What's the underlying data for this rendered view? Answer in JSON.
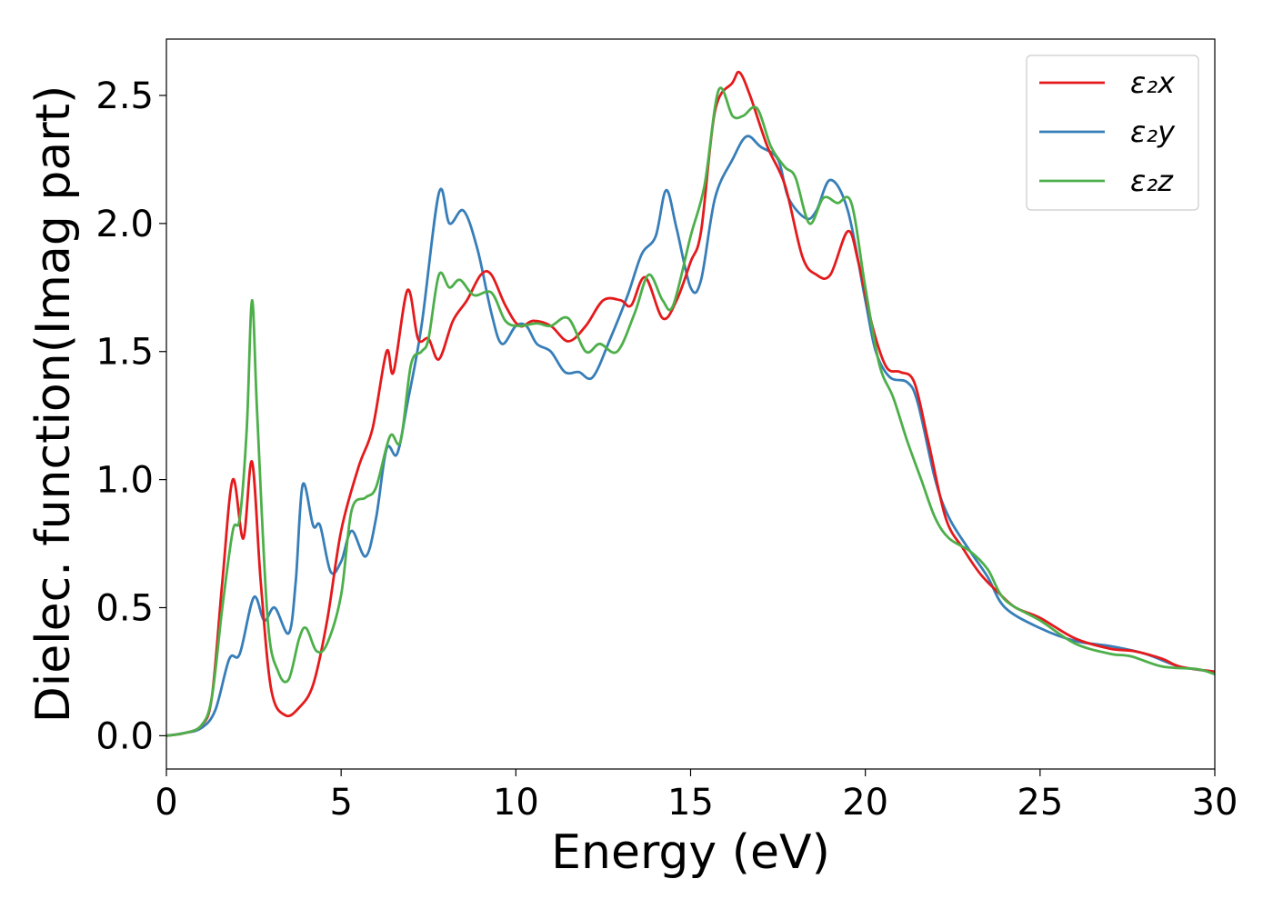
{
  "chart_data": {
    "type": "line",
    "title": "",
    "xlabel": "Energy (eV)",
    "ylabel": "Dielec. function(Imag part)",
    "xlim": [
      0,
      30
    ],
    "ylim": [
      -0.13,
      2.72
    ],
    "xticks": [
      0,
      5,
      10,
      15,
      20,
      25,
      30
    ],
    "xtick_labels": [
      "0",
      "5",
      "10",
      "15",
      "20",
      "25",
      "30"
    ],
    "yticks": [
      0.0,
      0.5,
      1.0,
      1.5,
      2.0,
      2.5
    ],
    "ytick_labels": [
      "0.0",
      "0.5",
      "1.0",
      "1.5",
      "2.0",
      "2.5"
    ],
    "grid": false,
    "legend_position": "top-right",
    "series": [
      {
        "name": "ε₂x",
        "color": "#e41a1c",
        "points": [
          [
            0,
            0
          ],
          [
            0.5,
            0.01
          ],
          [
            1,
            0.04
          ],
          [
            1.3,
            0.15
          ],
          [
            1.6,
            0.6
          ],
          [
            1.9,
            1.0
          ],
          [
            2.2,
            0.77
          ],
          [
            2.45,
            1.07
          ],
          [
            2.7,
            0.6
          ],
          [
            3.0,
            0.18
          ],
          [
            3.4,
            0.08
          ],
          [
            3.8,
            0.11
          ],
          [
            4.2,
            0.2
          ],
          [
            4.6,
            0.45
          ],
          [
            5.0,
            0.8
          ],
          [
            5.5,
            1.05
          ],
          [
            5.9,
            1.2
          ],
          [
            6.3,
            1.5
          ],
          [
            6.5,
            1.42
          ],
          [
            6.9,
            1.74
          ],
          [
            7.2,
            1.55
          ],
          [
            7.5,
            1.55
          ],
          [
            7.8,
            1.47
          ],
          [
            8.2,
            1.62
          ],
          [
            8.6,
            1.7
          ],
          [
            9.0,
            1.8
          ],
          [
            9.3,
            1.8
          ],
          [
            9.7,
            1.68
          ],
          [
            10.1,
            1.6
          ],
          [
            10.5,
            1.62
          ],
          [
            11.0,
            1.6
          ],
          [
            11.5,
            1.54
          ],
          [
            12.0,
            1.6
          ],
          [
            12.5,
            1.7
          ],
          [
            13.0,
            1.7
          ],
          [
            13.3,
            1.68
          ],
          [
            13.7,
            1.79
          ],
          [
            14.2,
            1.63
          ],
          [
            14.6,
            1.7
          ],
          [
            15.0,
            1.85
          ],
          [
            15.3,
            1.97
          ],
          [
            15.7,
            2.44
          ],
          [
            16.2,
            2.55
          ],
          [
            16.4,
            2.59
          ],
          [
            16.7,
            2.5
          ],
          [
            17.2,
            2.3
          ],
          [
            17.7,
            2.15
          ],
          [
            18.2,
            1.87
          ],
          [
            18.6,
            1.8
          ],
          [
            19.0,
            1.8
          ],
          [
            19.5,
            1.97
          ],
          [
            19.8,
            1.85
          ],
          [
            20.2,
            1.6
          ],
          [
            20.6,
            1.44
          ],
          [
            21.0,
            1.42
          ],
          [
            21.4,
            1.38
          ],
          [
            21.8,
            1.15
          ],
          [
            22.3,
            0.85
          ],
          [
            22.8,
            0.73
          ],
          [
            23.3,
            0.63
          ],
          [
            23.8,
            0.56
          ],
          [
            24.3,
            0.5
          ],
          [
            25.0,
            0.46
          ],
          [
            26.0,
            0.38
          ],
          [
            27.0,
            0.34
          ],
          [
            27.7,
            0.33
          ],
          [
            28.5,
            0.3
          ],
          [
            29.0,
            0.27
          ],
          [
            30.0,
            0.25
          ]
        ]
      },
      {
        "name": "ε₂y",
        "color": "#377eb8",
        "points": [
          [
            0,
            0
          ],
          [
            0.5,
            0.01
          ],
          [
            1,
            0.03
          ],
          [
            1.4,
            0.1
          ],
          [
            1.8,
            0.3
          ],
          [
            2.1,
            0.32
          ],
          [
            2.5,
            0.54
          ],
          [
            2.8,
            0.45
          ],
          [
            3.1,
            0.5
          ],
          [
            3.5,
            0.4
          ],
          [
            3.7,
            0.6
          ],
          [
            3.9,
            0.98
          ],
          [
            4.2,
            0.82
          ],
          [
            4.4,
            0.82
          ],
          [
            4.7,
            0.64
          ],
          [
            5.0,
            0.68
          ],
          [
            5.3,
            0.8
          ],
          [
            5.7,
            0.7
          ],
          [
            6.0,
            0.85
          ],
          [
            6.3,
            1.12
          ],
          [
            6.6,
            1.1
          ],
          [
            6.9,
            1.3
          ],
          [
            7.3,
            1.6
          ],
          [
            7.8,
            2.12
          ],
          [
            8.1,
            2.0
          ],
          [
            8.5,
            2.05
          ],
          [
            8.9,
            1.9
          ],
          [
            9.3,
            1.65
          ],
          [
            9.6,
            1.53
          ],
          [
            10.0,
            1.6
          ],
          [
            10.3,
            1.6
          ],
          [
            10.6,
            1.53
          ],
          [
            11.0,
            1.5
          ],
          [
            11.4,
            1.42
          ],
          [
            11.8,
            1.42
          ],
          [
            12.2,
            1.4
          ],
          [
            12.7,
            1.55
          ],
          [
            13.2,
            1.72
          ],
          [
            13.6,
            1.88
          ],
          [
            14.0,
            1.95
          ],
          [
            14.3,
            2.13
          ],
          [
            14.6,
            1.98
          ],
          [
            15.0,
            1.75
          ],
          [
            15.3,
            1.78
          ],
          [
            15.7,
            2.1
          ],
          [
            16.2,
            2.25
          ],
          [
            16.6,
            2.34
          ],
          [
            17.0,
            2.3
          ],
          [
            17.5,
            2.25
          ],
          [
            17.8,
            2.1
          ],
          [
            18.3,
            2.02
          ],
          [
            18.6,
            2.05
          ],
          [
            19.0,
            2.17
          ],
          [
            19.5,
            2.05
          ],
          [
            20.0,
            1.7
          ],
          [
            20.3,
            1.5
          ],
          [
            20.7,
            1.4
          ],
          [
            21.2,
            1.38
          ],
          [
            21.5,
            1.3
          ],
          [
            22.0,
            1.0
          ],
          [
            22.4,
            0.85
          ],
          [
            23.0,
            0.72
          ],
          [
            23.5,
            0.62
          ],
          [
            24.0,
            0.5
          ],
          [
            25.0,
            0.42
          ],
          [
            26.0,
            0.37
          ],
          [
            27.0,
            0.35
          ],
          [
            28.0,
            0.32
          ],
          [
            29.0,
            0.27
          ],
          [
            30.0,
            0.25
          ]
        ]
      },
      {
        "name": "ε₂z",
        "color": "#4daf4a",
        "points": [
          [
            0,
            0
          ],
          [
            0.5,
            0.01
          ],
          [
            1,
            0.04
          ],
          [
            1.3,
            0.15
          ],
          [
            1.6,
            0.5
          ],
          [
            1.9,
            0.8
          ],
          [
            2.1,
            0.85
          ],
          [
            2.3,
            1.2
          ],
          [
            2.45,
            1.7
          ],
          [
            2.6,
            1.25
          ],
          [
            2.9,
            0.45
          ],
          [
            3.2,
            0.25
          ],
          [
            3.5,
            0.22
          ],
          [
            3.8,
            0.38
          ],
          [
            4.0,
            0.42
          ],
          [
            4.3,
            0.33
          ],
          [
            4.6,
            0.36
          ],
          [
            5.0,
            0.55
          ],
          [
            5.3,
            0.88
          ],
          [
            5.7,
            0.93
          ],
          [
            6.0,
            0.97
          ],
          [
            6.4,
            1.17
          ],
          [
            6.7,
            1.15
          ],
          [
            7.0,
            1.45
          ],
          [
            7.3,
            1.5
          ],
          [
            7.5,
            1.55
          ],
          [
            7.8,
            1.8
          ],
          [
            8.1,
            1.75
          ],
          [
            8.4,
            1.78
          ],
          [
            8.8,
            1.72
          ],
          [
            9.3,
            1.73
          ],
          [
            9.7,
            1.62
          ],
          [
            10.1,
            1.6
          ],
          [
            10.6,
            1.61
          ],
          [
            11.0,
            1.6
          ],
          [
            11.5,
            1.63
          ],
          [
            12.0,
            1.5
          ],
          [
            12.4,
            1.53
          ],
          [
            12.9,
            1.5
          ],
          [
            13.4,
            1.65
          ],
          [
            13.8,
            1.8
          ],
          [
            14.2,
            1.7
          ],
          [
            14.5,
            1.68
          ],
          [
            15.0,
            1.95
          ],
          [
            15.4,
            2.15
          ],
          [
            15.8,
            2.52
          ],
          [
            16.2,
            2.42
          ],
          [
            16.5,
            2.42
          ],
          [
            16.9,
            2.45
          ],
          [
            17.3,
            2.3
          ],
          [
            17.7,
            2.22
          ],
          [
            18.0,
            2.18
          ],
          [
            18.4,
            2.0
          ],
          [
            18.8,
            2.1
          ],
          [
            19.2,
            2.08
          ],
          [
            19.6,
            2.08
          ],
          [
            20.0,
            1.75
          ],
          [
            20.4,
            1.45
          ],
          [
            20.8,
            1.32
          ],
          [
            21.2,
            1.15
          ],
          [
            21.6,
            1.0
          ],
          [
            22.0,
            0.85
          ],
          [
            22.4,
            0.77
          ],
          [
            23.0,
            0.72
          ],
          [
            23.5,
            0.65
          ],
          [
            24.0,
            0.53
          ],
          [
            25.0,
            0.45
          ],
          [
            26.0,
            0.36
          ],
          [
            27.0,
            0.32
          ],
          [
            27.6,
            0.31
          ],
          [
            28.5,
            0.27
          ],
          [
            29.5,
            0.26
          ],
          [
            30.0,
            0.24
          ]
        ]
      }
    ]
  }
}
